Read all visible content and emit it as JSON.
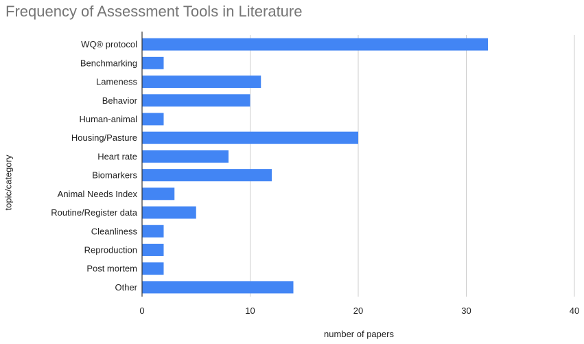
{
  "chart_data": {
    "type": "bar",
    "orientation": "horizontal",
    "title": "Frequency of Assessment Tools in Literature",
    "xlabel": "number of papers",
    "ylabel": "topic/category",
    "categories": [
      "WQ® protocol",
      "Benchmarking",
      "Lameness",
      "Behavior",
      "Human-animal",
      "Housing/Pasture",
      "Heart rate",
      "Biomarkers",
      "Animal Needs Index",
      "Routine/Register data",
      "Cleanliness",
      "Reproduction",
      "Post mortem",
      "Other"
    ],
    "values": [
      32,
      2,
      11,
      10,
      2,
      20,
      8,
      12,
      3,
      5,
      2,
      2,
      2,
      14
    ],
    "xlim": [
      0,
      40
    ],
    "xticks": [
      "0",
      "10",
      "20",
      "30",
      "40"
    ],
    "grid": true,
    "legend": "none",
    "bar_color": "#4285f4",
    "grid_color": "#cccccc"
  }
}
